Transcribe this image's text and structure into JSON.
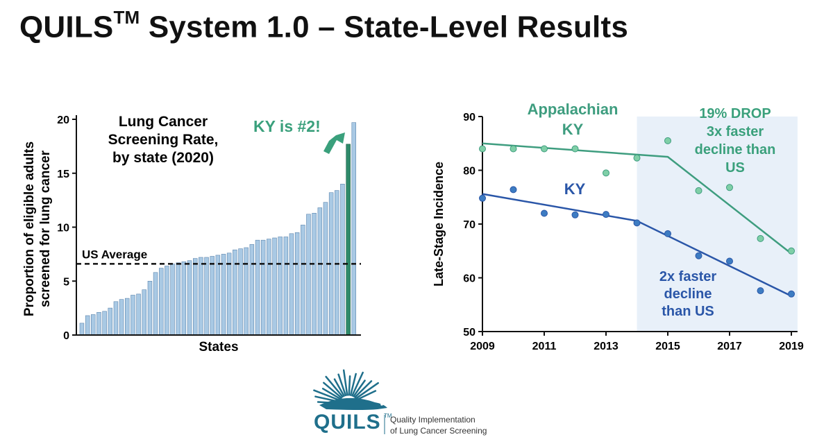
{
  "slide": {
    "title_main": "QUILS",
    "title_sup": "TM",
    "title_rest": " System 1.0 – State-Level Results"
  },
  "logo": {
    "name": "QUILS",
    "tm": "TM",
    "tagline_1": "Quality Implementation",
    "tagline_2": "of Lung Cancer Screening",
    "color": "#1f6f8b"
  },
  "chart_data": [
    {
      "type": "bar",
      "title_lines": [
        "Lung Cancer",
        "Screening Rate,",
        "by state (2020)"
      ],
      "ylabel_lines": [
        "Proportion of eligible adults",
        "screened for lung cancer"
      ],
      "xlabel": "States",
      "ylim": [
        0,
        20
      ],
      "yticks": [
        0,
        5,
        10,
        15,
        20
      ],
      "values": [
        1.1,
        1.8,
        1.9,
        2.1,
        2.2,
        2.5,
        3.1,
        3.3,
        3.4,
        3.7,
        3.8,
        4.2,
        5.0,
        5.8,
        6.2,
        6.4,
        6.6,
        6.7,
        6.8,
        6.9,
        7.1,
        7.2,
        7.2,
        7.3,
        7.4,
        7.5,
        7.6,
        7.9,
        8.0,
        8.1,
        8.4,
        8.8,
        8.8,
        8.9,
        9.0,
        9.1,
        9.1,
        9.4,
        9.5,
        10.2,
        11.2,
        11.3,
        11.8,
        12.3,
        13.2,
        13.4,
        14.0,
        17.7,
        19.7
      ],
      "highlight_index": 47,
      "highlight_color": "#2e8a6a",
      "bar_color": "#a9c9e4",
      "reference_line": {
        "value": 6.6,
        "label": "US Average"
      },
      "annotation": {
        "text": "KY is #2!",
        "color": "#3aa07c"
      }
    },
    {
      "type": "line",
      "ylabel": "Late-Stage Incidence",
      "xlim": [
        2009,
        2019
      ],
      "ylim": [
        50,
        90
      ],
      "xticks": [
        2009,
        2011,
        2013,
        2015,
        2017,
        2019
      ],
      "yticks": [
        50,
        60,
        70,
        80,
        90
      ],
      "shaded_region": {
        "from": 2014,
        "to": 2019.2,
        "color": "#e8f0f9"
      },
      "series": [
        {
          "name": "Appalachian KY",
          "name_lines": [
            "Appalachian",
            "KY"
          ],
          "color": "#3e9d7f",
          "point_color": "#7fcfa7",
          "x": [
            2009,
            2010,
            2011,
            2012,
            2013,
            2014,
            2015,
            2016,
            2017,
            2018,
            2019
          ],
          "y": [
            84.0,
            84.0,
            84.0,
            84.0,
            79.5,
            82.3,
            85.5,
            76.2,
            76.8,
            67.3,
            65.0
          ],
          "trend": [
            [
              2009,
              85.0
            ],
            [
              2015,
              82.5
            ],
            [
              2019,
              64.5
            ]
          ]
        },
        {
          "name": "KY",
          "name_lines": [
            "KY"
          ],
          "color": "#2a56a8",
          "point_color": "#3d7cc2",
          "x": [
            2009,
            2010,
            2011,
            2012,
            2013,
            2014,
            2015,
            2016,
            2017,
            2018,
            2019
          ],
          "y": [
            74.8,
            76.4,
            72.0,
            71.7,
            71.8,
            70.2,
            68.2,
            64.1,
            63.1,
            57.6,
            57.0
          ],
          "trend": [
            [
              2009,
              75.6
            ],
            [
              2014,
              70.6
            ],
            [
              2019,
              56.6
            ]
          ]
        }
      ],
      "annotations": [
        {
          "lines": [
            "19% DROP",
            "3x faster",
            "decline than",
            "US"
          ],
          "color": "#3aa07c"
        },
        {
          "lines": [
            "2x faster",
            "decline",
            "than US"
          ],
          "color": "#2a56a8"
        }
      ]
    }
  ]
}
